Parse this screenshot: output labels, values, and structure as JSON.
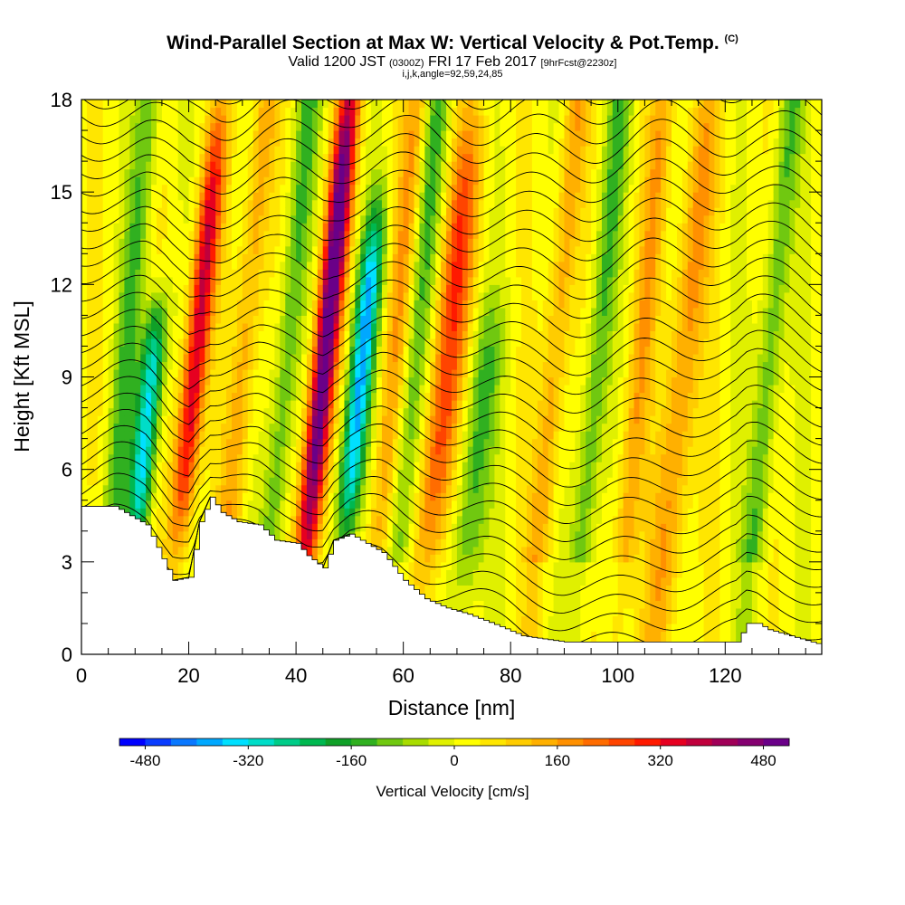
{
  "header": {
    "title": "Wind-Parallel Section at Max W: Vertical Velocity & Pot.Temp.",
    "copyright": "(C)",
    "valid_prefix": "Valid 1200 JST",
    "utc_time": "(0300Z)",
    "valid_date": "FRI 17 Feb 2017",
    "forecast": "[9hrFcst@2230z]",
    "params": "i,j,k,angle=92,59,24,85"
  },
  "chart_data": {
    "type": "heatmap",
    "xlabel": "Distance [nm]",
    "ylabel": "Height [Kft MSL]",
    "xlim": [
      0,
      138
    ],
    "ylim": [
      0,
      18
    ],
    "x_ticks": [
      0,
      20,
      40,
      60,
      80,
      100,
      120
    ],
    "y_ticks": [
      0,
      3,
      6,
      9,
      12,
      15,
      18
    ],
    "grid": false,
    "colorbar": {
      "title": "Vertical Velocity [cm/s]",
      "min": -520,
      "max": 520,
      "step": 40,
      "tick_values": [
        -480,
        -320,
        -160,
        0,
        160,
        320,
        480
      ],
      "tick_labels": [
        "-480",
        "-320",
        "-160",
        "0",
        "160",
        "320",
        "480"
      ],
      "colors": [
        "#0000ff",
        "#0a3cff",
        "#0a78ff",
        "#00a8ff",
        "#00e0ff",
        "#00ddc8",
        "#00cc88",
        "#00b850",
        "#10a028",
        "#30b020",
        "#70c810",
        "#a8dc00",
        "#e0f000",
        "#ffff00",
        "#ffe600",
        "#ffcc00",
        "#ffb000",
        "#ff9000",
        "#ff6c00",
        "#ff4400",
        "#ff1a00",
        "#e60020",
        "#c0003c",
        "#a00058",
        "#840070",
        "#6a0088"
      ]
    },
    "updrafts": [
      {
        "x": 21,
        "height_range": [
          5,
          16
        ],
        "peak": 360
      },
      {
        "x": 45,
        "height_range": [
          3,
          18
        ],
        "peak": 520
      },
      {
        "x": 68,
        "height_range": [
          4,
          16
        ],
        "peak": 260
      },
      {
        "x": 112,
        "height_range": [
          0,
          18
        ],
        "peak": 160
      }
    ],
    "downdrafts": [
      {
        "x": 13,
        "height_range": [
          5,
          10
        ],
        "peak": -360
      },
      {
        "x": 52,
        "height_range": [
          5,
          13
        ],
        "peak": -400
      },
      {
        "x": 75,
        "height_range": [
          3,
          10
        ],
        "peak": -160
      }
    ],
    "terrain": {
      "x": [
        0,
        6,
        12,
        15,
        17,
        20,
        22,
        24,
        26,
        29,
        33,
        36,
        40,
        42,
        45,
        47,
        50,
        53,
        56,
        60,
        64,
        68,
        72,
        78,
        82,
        90,
        100,
        110,
        122,
        124,
        126,
        128,
        138
      ],
      "height": [
        4.8,
        4.8,
        4.2,
        3.1,
        2.4,
        2.5,
        4.3,
        5.1,
        4.6,
        4.3,
        4.2,
        3.7,
        3.6,
        3.2,
        2.8,
        3.7,
        3.9,
        3.6,
        3.3,
        2.4,
        1.8,
        1.5,
        1.3,
        0.9,
        0.6,
        0.4,
        0.4,
        0.4,
        0.4,
        1.0,
        1.0,
        0.8,
        0.3
      ]
    },
    "theta_contours": {
      "levels": 30,
      "note": "black isentrope lines following terrain waves"
    }
  }
}
